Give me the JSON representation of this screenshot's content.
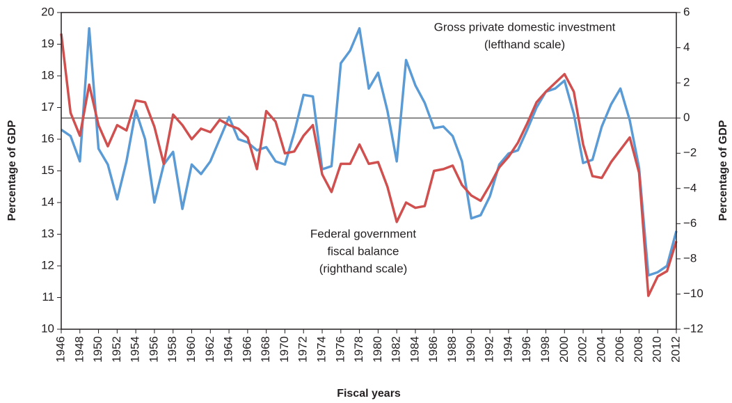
{
  "chart_data": {
    "type": "line",
    "y_label": "Percentage of GDP",
    "y2_label": "Percentage of GDP",
    "x_label": "Fiscal years",
    "x": [
      1946,
      1947,
      1948,
      1949,
      1950,
      1951,
      1952,
      1953,
      1954,
      1955,
      1956,
      1957,
      1958,
      1959,
      1960,
      1961,
      1962,
      1963,
      1964,
      1965,
      1966,
      1967,
      1968,
      1969,
      1970,
      1971,
      1972,
      1973,
      1974,
      1975,
      1976,
      1977,
      1978,
      1979,
      1980,
      1981,
      1982,
      1983,
      1984,
      1985,
      1986,
      1987,
      1988,
      1989,
      1990,
      1991,
      1992,
      1993,
      1994,
      1995,
      1996,
      1997,
      1998,
      1999,
      2000,
      2001,
      2002,
      2003,
      2004,
      2005,
      2006,
      2007,
      2008,
      2009,
      2010,
      2011,
      2012
    ],
    "xlim": [
      1946,
      2012
    ],
    "xticks": [
      1946,
      1948,
      1950,
      1952,
      1954,
      1956,
      1958,
      1960,
      1962,
      1964,
      1966,
      1968,
      1970,
      1972,
      1974,
      1976,
      1978,
      1980,
      1982,
      1984,
      1986,
      1988,
      1990,
      1992,
      1994,
      1996,
      1998,
      2000,
      2002,
      2004,
      2006,
      2008,
      2010,
      2012
    ],
    "ylim": [
      10,
      20
    ],
    "yticks": [
      10,
      11,
      12,
      13,
      14,
      15,
      16,
      17,
      18,
      19,
      20
    ],
    "y2lim": [
      -12,
      6
    ],
    "y2ticks": [
      {
        "value": -12,
        "label": "−12"
      },
      {
        "value": -10,
        "label": "−10"
      },
      {
        "value": -8,
        "label": "−8"
      },
      {
        "value": -6,
        "label": "−6"
      },
      {
        "value": -4,
        "label": "−4"
      },
      {
        "value": -2,
        "label": "−2"
      },
      0,
      2,
      4,
      6
    ],
    "zero_line": {
      "axis": "y2",
      "value": 0
    },
    "series": [
      {
        "name": "Gross private domestic investment",
        "color": "#5b9bd5",
        "axis": "y",
        "values": [
          16.3,
          16.1,
          15.3,
          19.5,
          15.7,
          15.2,
          14.1,
          15.3,
          16.9,
          16.0,
          14.0,
          15.2,
          15.6,
          13.8,
          15.2,
          14.9,
          15.3,
          16.0,
          16.7,
          16.0,
          15.9,
          15.65,
          15.75,
          15.3,
          15.2,
          16.2,
          17.4,
          17.35,
          15.05,
          15.15,
          18.4,
          18.8,
          19.5,
          17.6,
          18.1,
          16.9,
          15.3,
          18.5,
          17.7,
          17.15,
          16.35,
          16.4,
          16.1,
          15.3,
          13.5,
          13.6,
          14.2,
          15.2,
          15.55,
          15.65,
          16.3,
          17.0,
          17.5,
          17.6,
          17.85,
          16.8,
          15.25,
          15.35,
          16.4,
          17.1,
          17.6,
          16.6,
          15.1,
          11.7,
          11.8,
          12.0,
          13.1
        ]
      },
      {
        "name": "Federal government fiscal balance",
        "color": "#d0504f",
        "axis": "y2",
        "values": [
          4.8,
          0.3,
          -1.0,
          1.9,
          -0.4,
          -1.6,
          -0.4,
          -0.7,
          1.0,
          0.9,
          -0.5,
          -2.6,
          0.2,
          -0.4,
          -1.2,
          -0.6,
          -0.8,
          -0.1,
          -0.4,
          -0.6,
          -1.1,
          -2.9,
          0.4,
          -0.2,
          -2.0,
          -1.9,
          -1.0,
          -0.4,
          -3.2,
          -4.2,
          -2.6,
          -2.6,
          -1.5,
          -2.6,
          -2.5,
          -3.9,
          -5.9,
          -4.8,
          -5.1,
          -5.0,
          -3.0,
          -2.9,
          -2.7,
          -3.8,
          -4.4,
          -4.7,
          -3.8,
          -2.8,
          -2.2,
          -1.4,
          -0.3,
          0.9,
          1.5,
          2.0,
          2.5,
          1.5,
          -1.5,
          -3.3,
          -3.4,
          -2.5,
          -1.8,
          -1.1,
          -3.1,
          -10.1,
          -9.0,
          -8.7,
          -7.0
        ]
      }
    ],
    "annotations": [
      {
        "lines": [
          "Gross private domestic investment",
          "(lefthand scale)"
        ]
      },
      {
        "lines": [
          "Federal government",
          "fiscal balance",
          "(righthand scale)"
        ]
      }
    ]
  }
}
